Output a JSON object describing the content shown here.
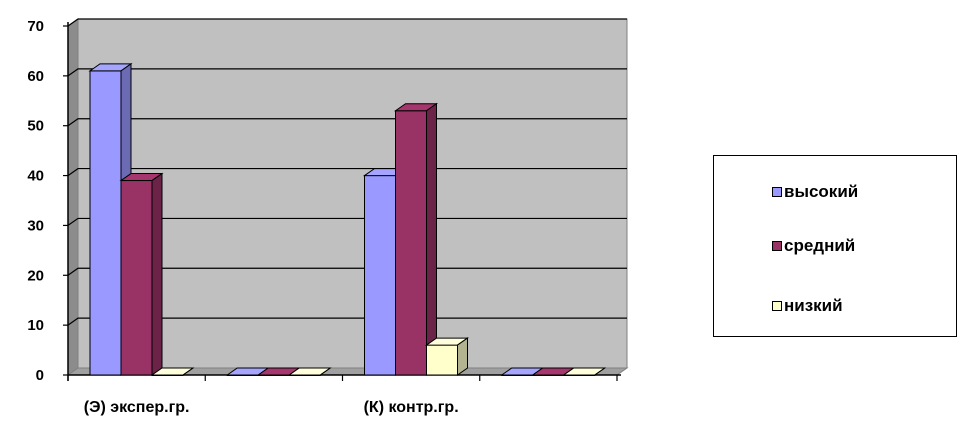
{
  "chart_data": {
    "type": "bar",
    "categories": [
      "(Э) экспер.гр.",
      "",
      "(К) контр.гр.",
      ""
    ],
    "series": [
      {
        "name": "высокий",
        "values": [
          61,
          0,
          40,
          0
        ],
        "color": "#9999ff"
      },
      {
        "name": "средний",
        "values": [
          39,
          0,
          53,
          0
        ],
        "color": "#993366"
      },
      {
        "name": "низкий",
        "values": [
          0,
          0,
          6,
          0
        ],
        "color": "#ffffcc"
      }
    ],
    "title": "",
    "xlabel": "",
    "ylabel": "",
    "ylim": [
      0,
      70
    ],
    "yticks": [
      "0",
      "10",
      "20",
      "30",
      "40",
      "50",
      "60",
      "70"
    ],
    "grid": true,
    "three_d": true,
    "wall_color": "#c0c0c0",
    "legend_position": "right"
  }
}
